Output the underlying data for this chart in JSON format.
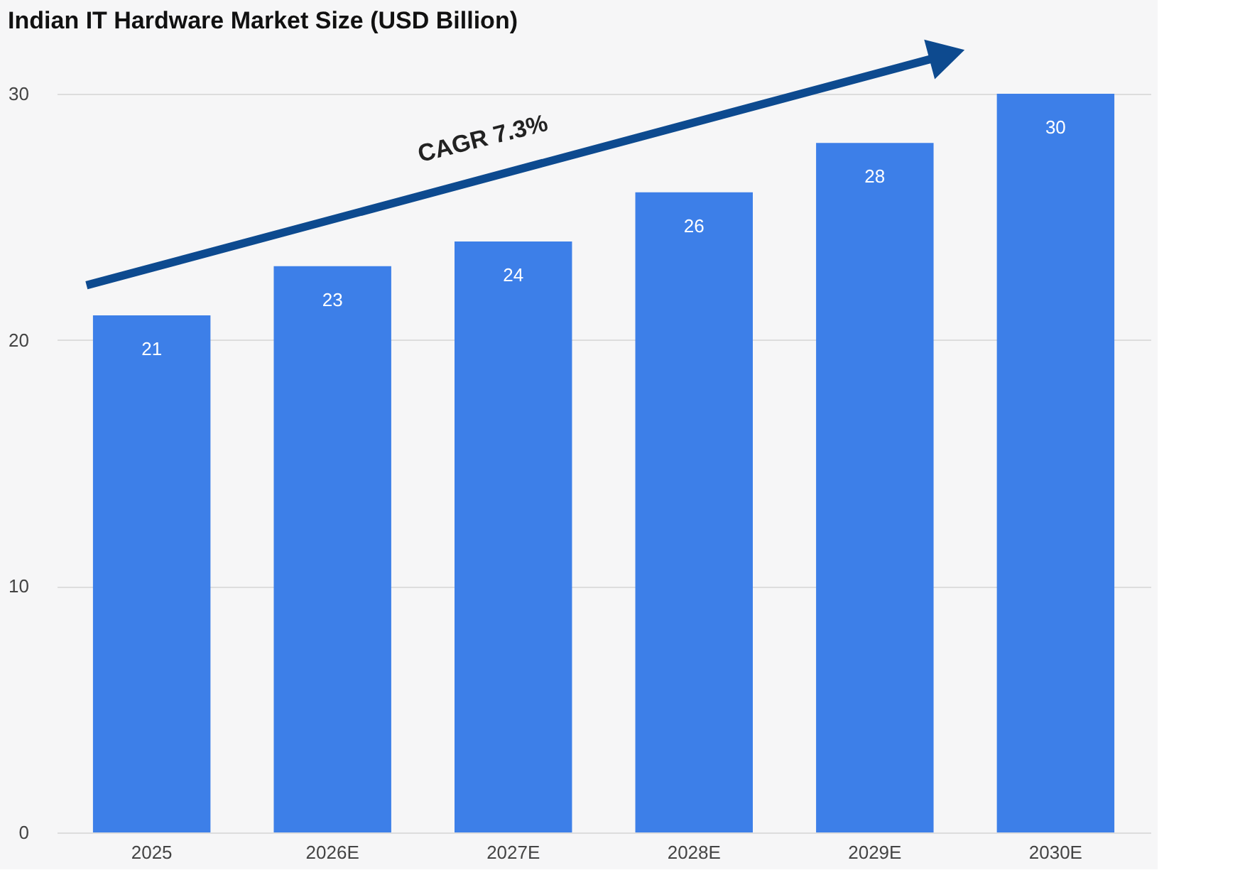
{
  "chart_data": {
    "type": "bar",
    "title": "Indian IT Hardware Market Size (USD Billion)",
    "categories": [
      "2025",
      "2026E",
      "2027E",
      "2028E",
      "2029E",
      "2030E"
    ],
    "values": [
      21,
      23,
      24,
      26,
      28,
      30
    ],
    "color": "#3d7fe8",
    "ylim": [
      0,
      30
    ],
    "yticks": [
      0,
      10,
      20,
      30
    ],
    "grid": "y",
    "data_labels": true,
    "annotations": [
      "CAGR 7.3%"
    ]
  }
}
